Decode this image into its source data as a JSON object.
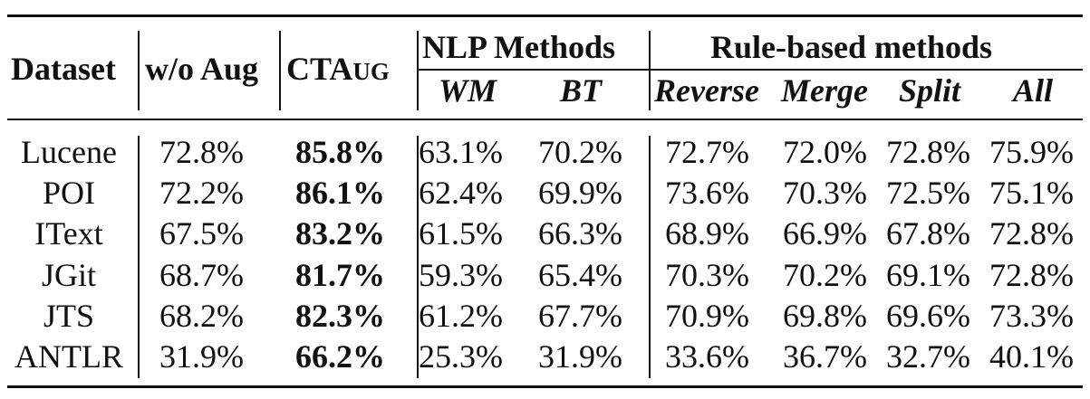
{
  "table": {
    "headers": {
      "dataset": "Dataset",
      "wo_aug": "w/o Aug",
      "ctaug_main": "CTA",
      "ctaug_tail": "UG",
      "nlp_group": "NLP Methods",
      "rule_group": "Rule-based methods",
      "nlp_sub": [
        "WM",
        "BT"
      ],
      "rule_sub": [
        "Reverse",
        "Merge",
        "Split",
        "All"
      ]
    },
    "rows": [
      {
        "dataset": "Lucene",
        "values": [
          "72.8%",
          "85.8%",
          "63.1%",
          "70.2%",
          "72.7%",
          "72.0%",
          "72.8%",
          "75.9%"
        ]
      },
      {
        "dataset": "POI",
        "values": [
          "72.2%",
          "86.1%",
          "62.4%",
          "69.9%",
          "73.6%",
          "70.3%",
          "72.5%",
          "75.1%"
        ]
      },
      {
        "dataset": "IText",
        "values": [
          "67.5%",
          "83.2%",
          "61.5%",
          "66.3%",
          "68.9%",
          "66.9%",
          "67.8%",
          "72.8%"
        ]
      },
      {
        "dataset": "JGit",
        "values": [
          "68.7%",
          "81.7%",
          "59.3%",
          "65.4%",
          "70.3%",
          "70.2%",
          "69.1%",
          "72.8%"
        ]
      },
      {
        "dataset": "JTS",
        "values": [
          "68.2%",
          "82.3%",
          "61.2%",
          "67.7%",
          "70.9%",
          "69.8%",
          "69.6%",
          "73.3%"
        ]
      },
      {
        "dataset": "ANTLR",
        "values": [
          "31.9%",
          "66.2%",
          "25.3%",
          "31.9%",
          "33.6%",
          "36.7%",
          "32.7%",
          "40.1%"
        ]
      }
    ]
  }
}
